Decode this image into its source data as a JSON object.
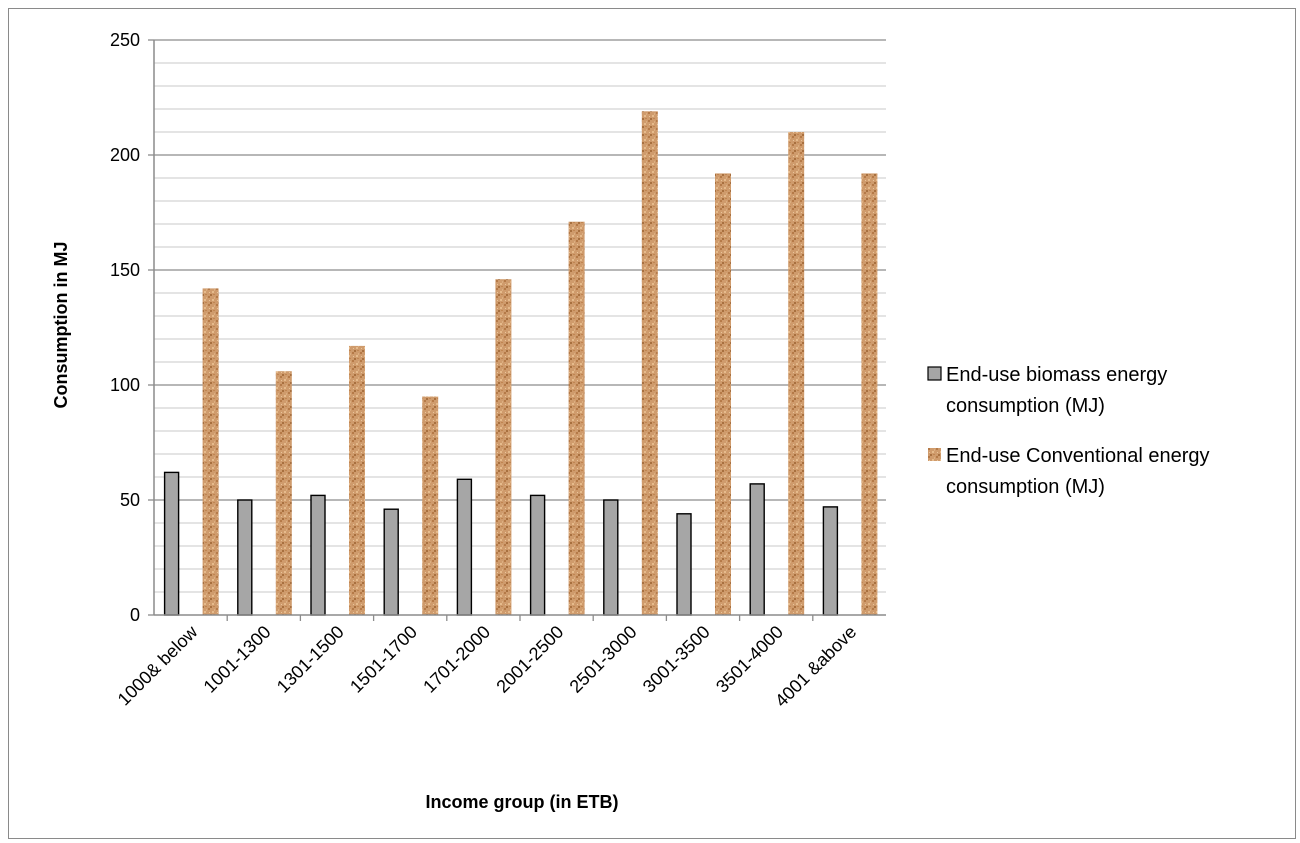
{
  "chart_data": {
    "type": "bar",
    "title": "",
    "xlabel": "Income group (in ETB)",
    "ylabel": "Consumption in MJ",
    "categories": [
      "1000& below",
      "1001-1300",
      "1301-1500",
      "1501-1700",
      "1701-2000",
      "2001-2500",
      "2501-3000",
      "3001-3500",
      "3501-4000",
      "4001 &above"
    ],
    "series": [
      {
        "name": "End-use biomass energy consumption (MJ)",
        "legend_lines": [
          "End-use biomass energy",
          "consumption (MJ)"
        ],
        "color": "#a6a6a6",
        "values": [
          62,
          50,
          52,
          46,
          59,
          52,
          50,
          44,
          57,
          47
        ]
      },
      {
        "name": "End-use Conventional energy consumption (MJ)",
        "legend_lines": [
          "End-use Conventional energy",
          "consumption (MJ)"
        ],
        "color": "#cf9b6c",
        "values": [
          142,
          106,
          117,
          95,
          146,
          171,
          219,
          192,
          210,
          192
        ]
      }
    ],
    "ylim": [
      0,
      250
    ],
    "y_ticks": [
      "0",
      "50",
      "100",
      "150",
      "200",
      "250"
    ],
    "grid": true,
    "legend_position": "right"
  }
}
